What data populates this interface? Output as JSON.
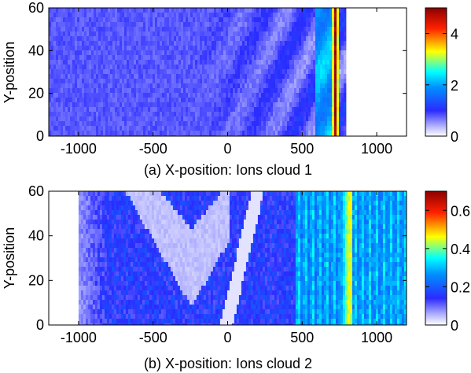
{
  "chart_data": [
    {
      "type": "heatmap",
      "caption": "(a) X-position: Ions cloud 1",
      "ylabel": "Y-position",
      "xlim": [
        -1200,
        1200
      ],
      "ylim": [
        0,
        60
      ],
      "xticks": [
        "-1000",
        "-500",
        "0",
        "500",
        "1000"
      ],
      "yticks": [
        "0",
        "20",
        "40",
        "60"
      ],
      "colorbar": {
        "range": [
          0,
          5
        ],
        "ticks": [
          "0",
          "2",
          "4"
        ]
      },
      "features": {
        "field_extent_x": [
          -1200,
          780
        ],
        "peak_band_x": [
          690,
          740
        ],
        "peak_value": 4.9,
        "background_value": 0.8
      }
    },
    {
      "type": "heatmap",
      "caption": "(b) X-position: Ions cloud 2",
      "ylabel": "Y-position",
      "xlim": [
        -1200,
        1200
      ],
      "ylim": [
        0,
        60
      ],
      "xticks": [
        "-1000",
        "-500",
        "0",
        "500",
        "1000"
      ],
      "yticks": [
        "0",
        "20",
        "40",
        "60"
      ],
      "colorbar": {
        "range": [
          0,
          0.7
        ],
        "ticks": [
          "0",
          "0.2",
          "0.4",
          "0.6"
        ]
      },
      "features": {
        "field_extent_x": [
          -1000,
          1200
        ],
        "bright_band_x": [
          750,
          820
        ],
        "peak_value": 0.45,
        "background_value": 0.15
      }
    }
  ],
  "colormap": [
    "#ffffff",
    "#3a3aff",
    "#00a0ff",
    "#00ffff",
    "#ffff00",
    "#ff0000",
    "#8b0000"
  ]
}
